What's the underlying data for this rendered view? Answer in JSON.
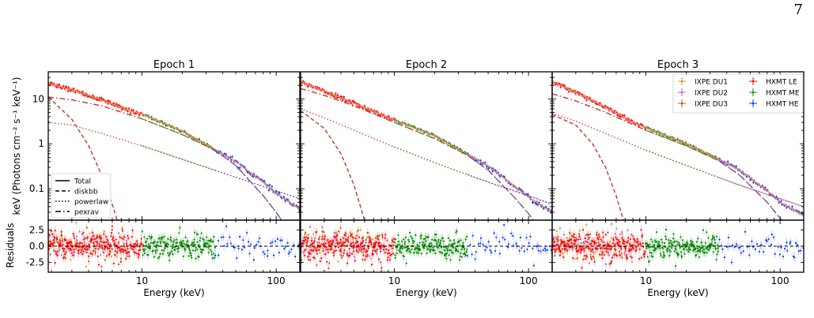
{
  "page_number": "7",
  "figure": {
    "y_label_top": "keV (Photons cm⁻² s⁻¹ keV⁻¹)",
    "y_label_bottom": "Residuals",
    "x_label": "Energy (keV)"
  },
  "legend_models": [
    {
      "label": "Total",
      "dash": "solid"
    },
    {
      "label": "diskbb",
      "dash": "dashed"
    },
    {
      "label": "powerlaw",
      "dash": "dotted"
    },
    {
      "label": "pexrav",
      "dash": "dashdot"
    }
  ],
  "legend_instruments": [
    {
      "label": "IXPE DU1",
      "color": "#d4a017"
    },
    {
      "label": "IXPE DU2",
      "color": "#c45ad1"
    },
    {
      "label": "IXPE DU3",
      "color": "#b05a1a"
    },
    {
      "label": "HXMT LE",
      "color": "#ff0000"
    },
    {
      "label": "HXMT ME",
      "color": "#008800"
    },
    {
      "label": "HXMT HE",
      "color": "#0033ff"
    }
  ],
  "chart_data": [
    {
      "type": "line",
      "title": "Epoch 1",
      "xscale": "log",
      "yscale": "log",
      "xlim": [
        2,
        150
      ],
      "ylim": [
        0.02,
        40
      ],
      "xticks": [
        10,
        100
      ],
      "yticks": [
        0.1,
        1,
        10
      ],
      "legend": "lower-left",
      "series": [
        {
          "name": "Total",
          "x": [
            2,
            3,
            5,
            8,
            10,
            20,
            35,
            50,
            80,
            100,
            150
          ],
          "y": [
            22,
            16,
            9.5,
            5.5,
            4.6,
            1.9,
            0.75,
            0.4,
            0.14,
            0.08,
            0.035
          ]
        },
        {
          "name": "diskbb",
          "x": [
            2,
            3,
            4,
            5,
            6,
            7
          ],
          "y": [
            11,
            3.5,
            0.9,
            0.2,
            0.045,
            0.01
          ]
        },
        {
          "name": "powerlaw",
          "x": [
            2,
            3,
            5,
            10,
            20,
            50,
            100,
            150
          ],
          "y": [
            3,
            2.6,
            1.7,
            0.9,
            0.45,
            0.18,
            0.09,
            0.06
          ]
        },
        {
          "name": "pexrav",
          "x": [
            2,
            3,
            5,
            10,
            20,
            35,
            50,
            80,
            100,
            150
          ],
          "y": [
            11,
            9.5,
            7,
            3.6,
            1.6,
            0.72,
            0.33,
            0.07,
            0.03,
            0.005
          ]
        }
      ],
      "residuals": {
        "yticks": [
          2.5,
          0.0,
          -2.5
        ],
        "ylim": [
          -4,
          4
        ]
      }
    },
    {
      "type": "line",
      "title": "Epoch 2",
      "xscale": "log",
      "yscale": "log",
      "xlim": [
        2,
        150
      ],
      "ylim": [
        0.02,
        40
      ],
      "xticks": [
        10,
        100
      ],
      "yticks": [
        0.1,
        1,
        10
      ],
      "series": [
        {
          "name": "Total",
          "x": [
            2,
            3,
            5,
            8,
            10,
            20,
            35,
            50,
            80,
            100,
            150
          ],
          "y": [
            24,
            15,
            8,
            4.4,
            3.4,
            1.5,
            0.58,
            0.32,
            0.11,
            0.065,
            0.03
          ]
        },
        {
          "name": "diskbb",
          "x": [
            2,
            3,
            4,
            5,
            6
          ],
          "y": [
            5.5,
            2.2,
            0.6,
            0.12,
            0.02
          ]
        },
        {
          "name": "powerlaw",
          "x": [
            2,
            3,
            5,
            10,
            20,
            50,
            100,
            150
          ],
          "y": [
            6,
            3.8,
            2,
            0.85,
            0.38,
            0.14,
            0.07,
            0.045
          ]
        },
        {
          "name": "pexrav",
          "x": [
            2,
            3,
            5,
            10,
            20,
            35,
            50,
            80,
            100,
            150
          ],
          "y": [
            17,
            12,
            7,
            3,
            1.3,
            0.56,
            0.26,
            0.06,
            0.028,
            0.005
          ]
        }
      ],
      "residuals": {
        "yticks": [
          2.5,
          0.0,
          -2.5
        ],
        "ylim": [
          -4,
          4
        ]
      }
    },
    {
      "type": "line",
      "title": "Epoch 3",
      "xscale": "log",
      "yscale": "log",
      "xlim": [
        2,
        150
      ],
      "ylim": [
        0.02,
        40
      ],
      "xticks": [
        10,
        100
      ],
      "yticks": [
        0.1,
        1,
        10
      ],
      "legend": "upper-right",
      "series": [
        {
          "name": "Total",
          "x": [
            2,
            3,
            5,
            8,
            10,
            20,
            35,
            50,
            80,
            100,
            150
          ],
          "y": [
            24,
            14,
            6.5,
            3,
            2.3,
            1,
            0.45,
            0.26,
            0.09,
            0.05,
            0.025
          ]
        },
        {
          "name": "diskbb",
          "x": [
            2,
            3,
            4,
            5,
            6,
            7
          ],
          "y": [
            4.5,
            2.6,
            1,
            0.3,
            0.07,
            0.015
          ]
        },
        {
          "name": "powerlaw",
          "x": [
            2,
            3,
            5,
            10,
            20,
            50,
            100,
            150
          ],
          "y": [
            4.8,
            3.2,
            1.7,
            0.72,
            0.33,
            0.12,
            0.06,
            0.04
          ]
        },
        {
          "name": "pexrav",
          "x": [
            2,
            3,
            5,
            10,
            20,
            35,
            50,
            80,
            100,
            150
          ],
          "y": [
            13,
            9,
            5,
            2,
            0.9,
            0.42,
            0.2,
            0.05,
            0.022,
            0.005
          ]
        }
      ],
      "residuals": {
        "yticks": [
          2.5,
          0.0,
          -2.5
        ],
        "ylim": [
          -4,
          4
        ]
      }
    }
  ]
}
